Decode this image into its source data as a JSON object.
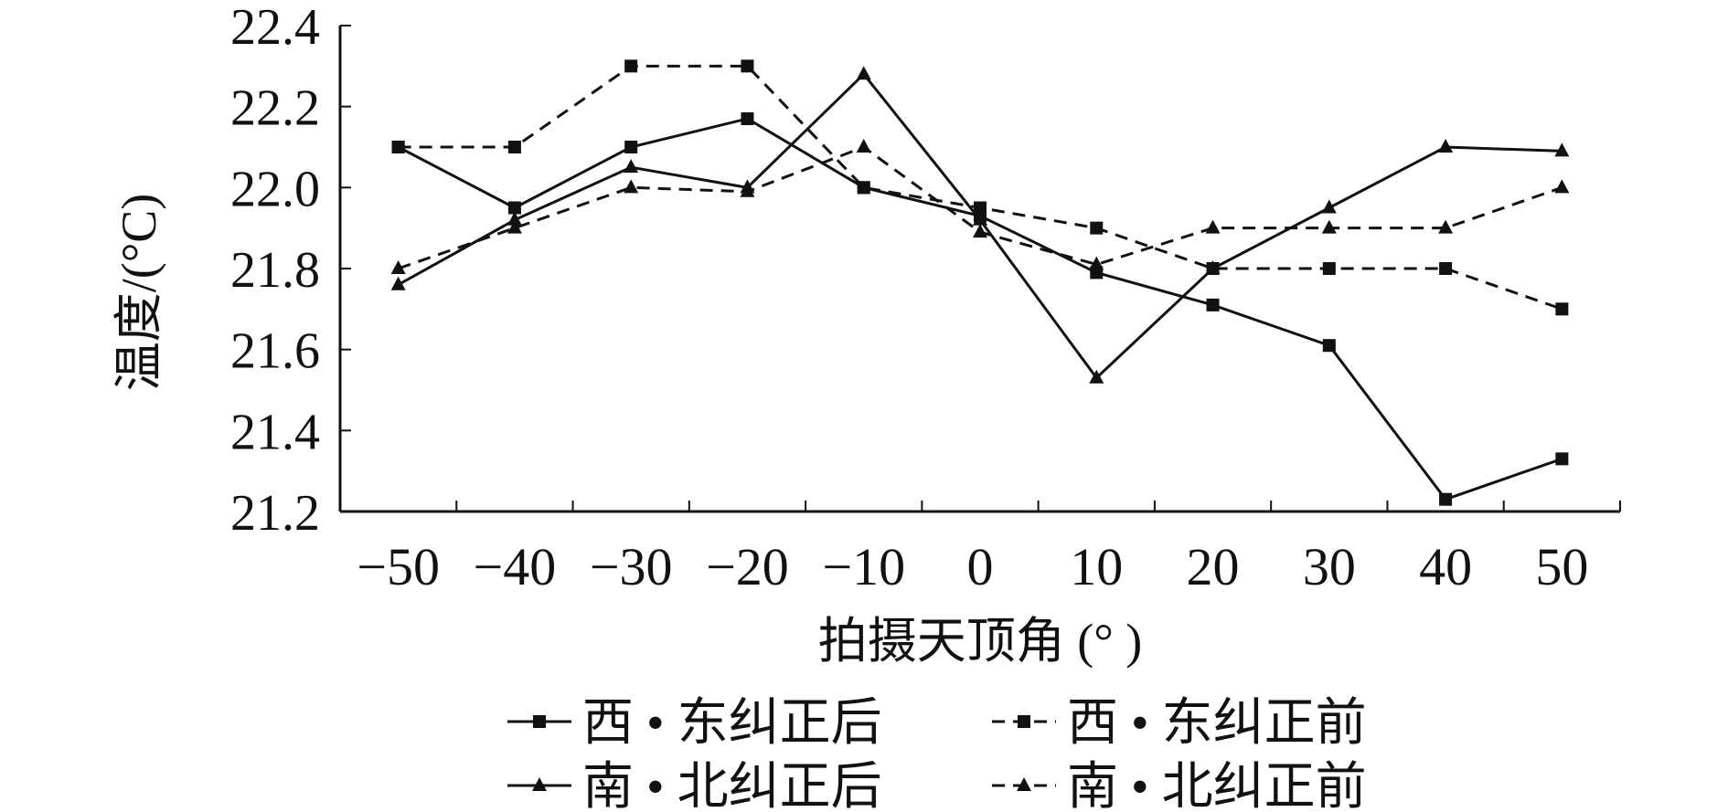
{
  "chart_data": {
    "type": "line",
    "xlabel": "拍摄天顶角 (° )",
    "ylabel": "温度/(°C)",
    "x": [
      -50,
      -40,
      -30,
      -20,
      -10,
      0,
      10,
      20,
      30,
      40,
      50
    ],
    "x_tick_labels": [
      "−50",
      "−40",
      "−30",
      "−20",
      "−10",
      "0",
      "10",
      "20",
      "30",
      "40",
      "50"
    ],
    "y_tick_labels": [
      "21.2",
      "21.4",
      "21.6",
      "21.8",
      "22.0",
      "22.2",
      "22.4"
    ],
    "ylim": [
      21.2,
      22.4
    ],
    "grid": false,
    "legend_position": "bottom",
    "series": [
      {
        "name": "西 • 东纠正后",
        "marker": "square",
        "dash": "solid",
        "values": [
          22.1,
          21.95,
          22.1,
          22.17,
          22.0,
          21.93,
          21.79,
          21.71,
          21.61,
          21.23,
          21.33
        ]
      },
      {
        "name": "西 • 东纠正前",
        "marker": "square",
        "dash": "dashed",
        "values": [
          22.1,
          22.1,
          22.3,
          22.3,
          22.0,
          21.95,
          21.9,
          21.8,
          21.8,
          21.8,
          21.7
        ]
      },
      {
        "name": "南 • 北纠正后",
        "marker": "triangle",
        "dash": "solid",
        "values": [
          21.76,
          21.92,
          22.05,
          22.0,
          22.28,
          21.92,
          21.53,
          21.8,
          21.95,
          22.1,
          22.09
        ]
      },
      {
        "name": "南 • 北纠正前",
        "marker": "triangle",
        "dash": "dashed",
        "values": [
          21.8,
          21.9,
          22.0,
          21.99,
          22.1,
          21.89,
          21.81,
          21.9,
          21.9,
          21.9,
          22.0
        ]
      }
    ],
    "colors": {
      "line": "#111111",
      "axis": "#111111"
    }
  }
}
